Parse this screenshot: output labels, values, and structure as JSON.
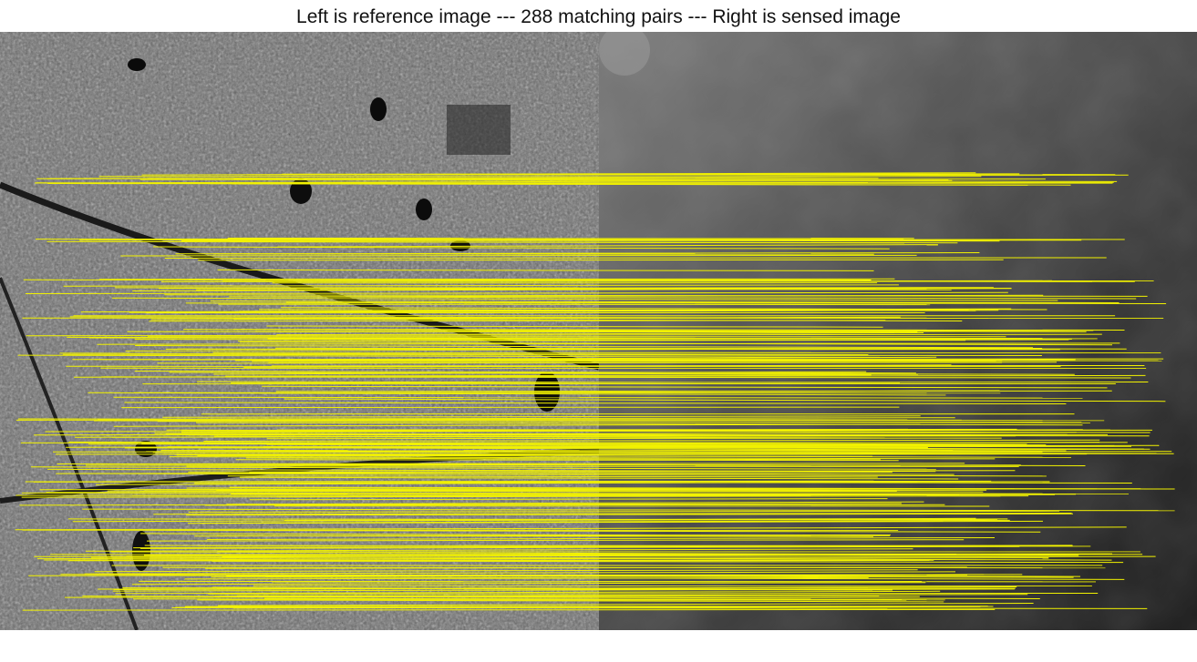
{
  "figure": {
    "title": "Left is reference image --- 288 matching pairs --- Right is sensed image",
    "pair_count": 288,
    "line_color": "#f2f200",
    "reference_image": {
      "description_tone": "grayscale optical/SAR texture",
      "base_color": "#6e6e6e"
    },
    "sensed_image": {
      "description_tone": "smooth dark grayscale gradient",
      "base_color": "#3c3c3c"
    }
  }
}
